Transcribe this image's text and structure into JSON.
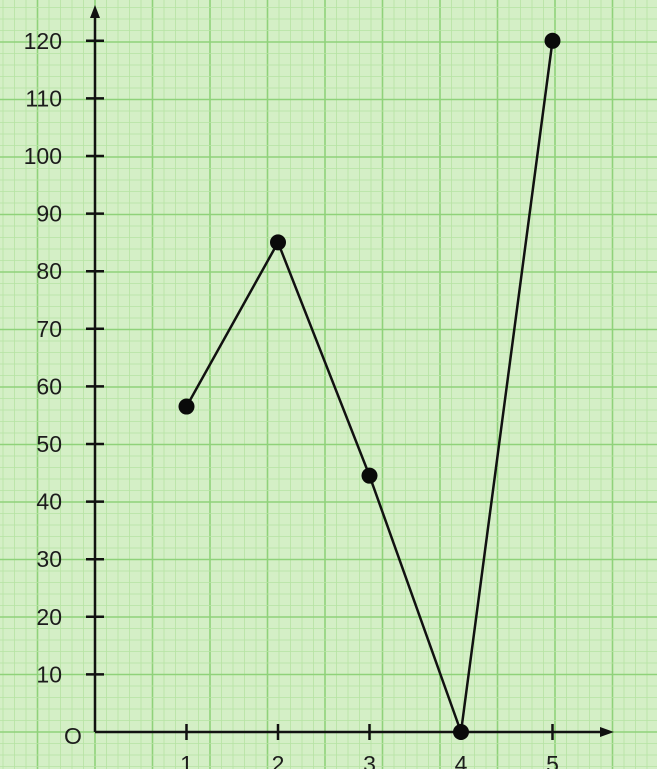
{
  "chart_data": {
    "type": "line",
    "title": "",
    "xlabel": "",
    "ylabel": "",
    "origin_label": "O",
    "x": [
      1,
      2,
      3,
      4,
      5
    ],
    "x_tick_labels": [
      "1",
      "2",
      "3",
      "4",
      "5"
    ],
    "y_tick_labels": [
      "10",
      "20",
      "30",
      "40",
      "50",
      "60",
      "70",
      "80",
      "90",
      "100",
      "110",
      "120"
    ],
    "y_ticks": [
      10,
      20,
      30,
      40,
      50,
      60,
      70,
      80,
      90,
      100,
      110,
      120
    ],
    "series": [
      {
        "values": [
          56.5,
          85,
          44.5,
          0,
          120
        ]
      }
    ],
    "xlim": [
      0,
      5.5
    ],
    "ylim": [
      0,
      120
    ],
    "grid": true,
    "legend": "none",
    "colors": {
      "paper": "#d4efc6",
      "grid_minor": "#b6e3a3",
      "grid_major": "#8fd27a",
      "ink": "#111111"
    }
  }
}
